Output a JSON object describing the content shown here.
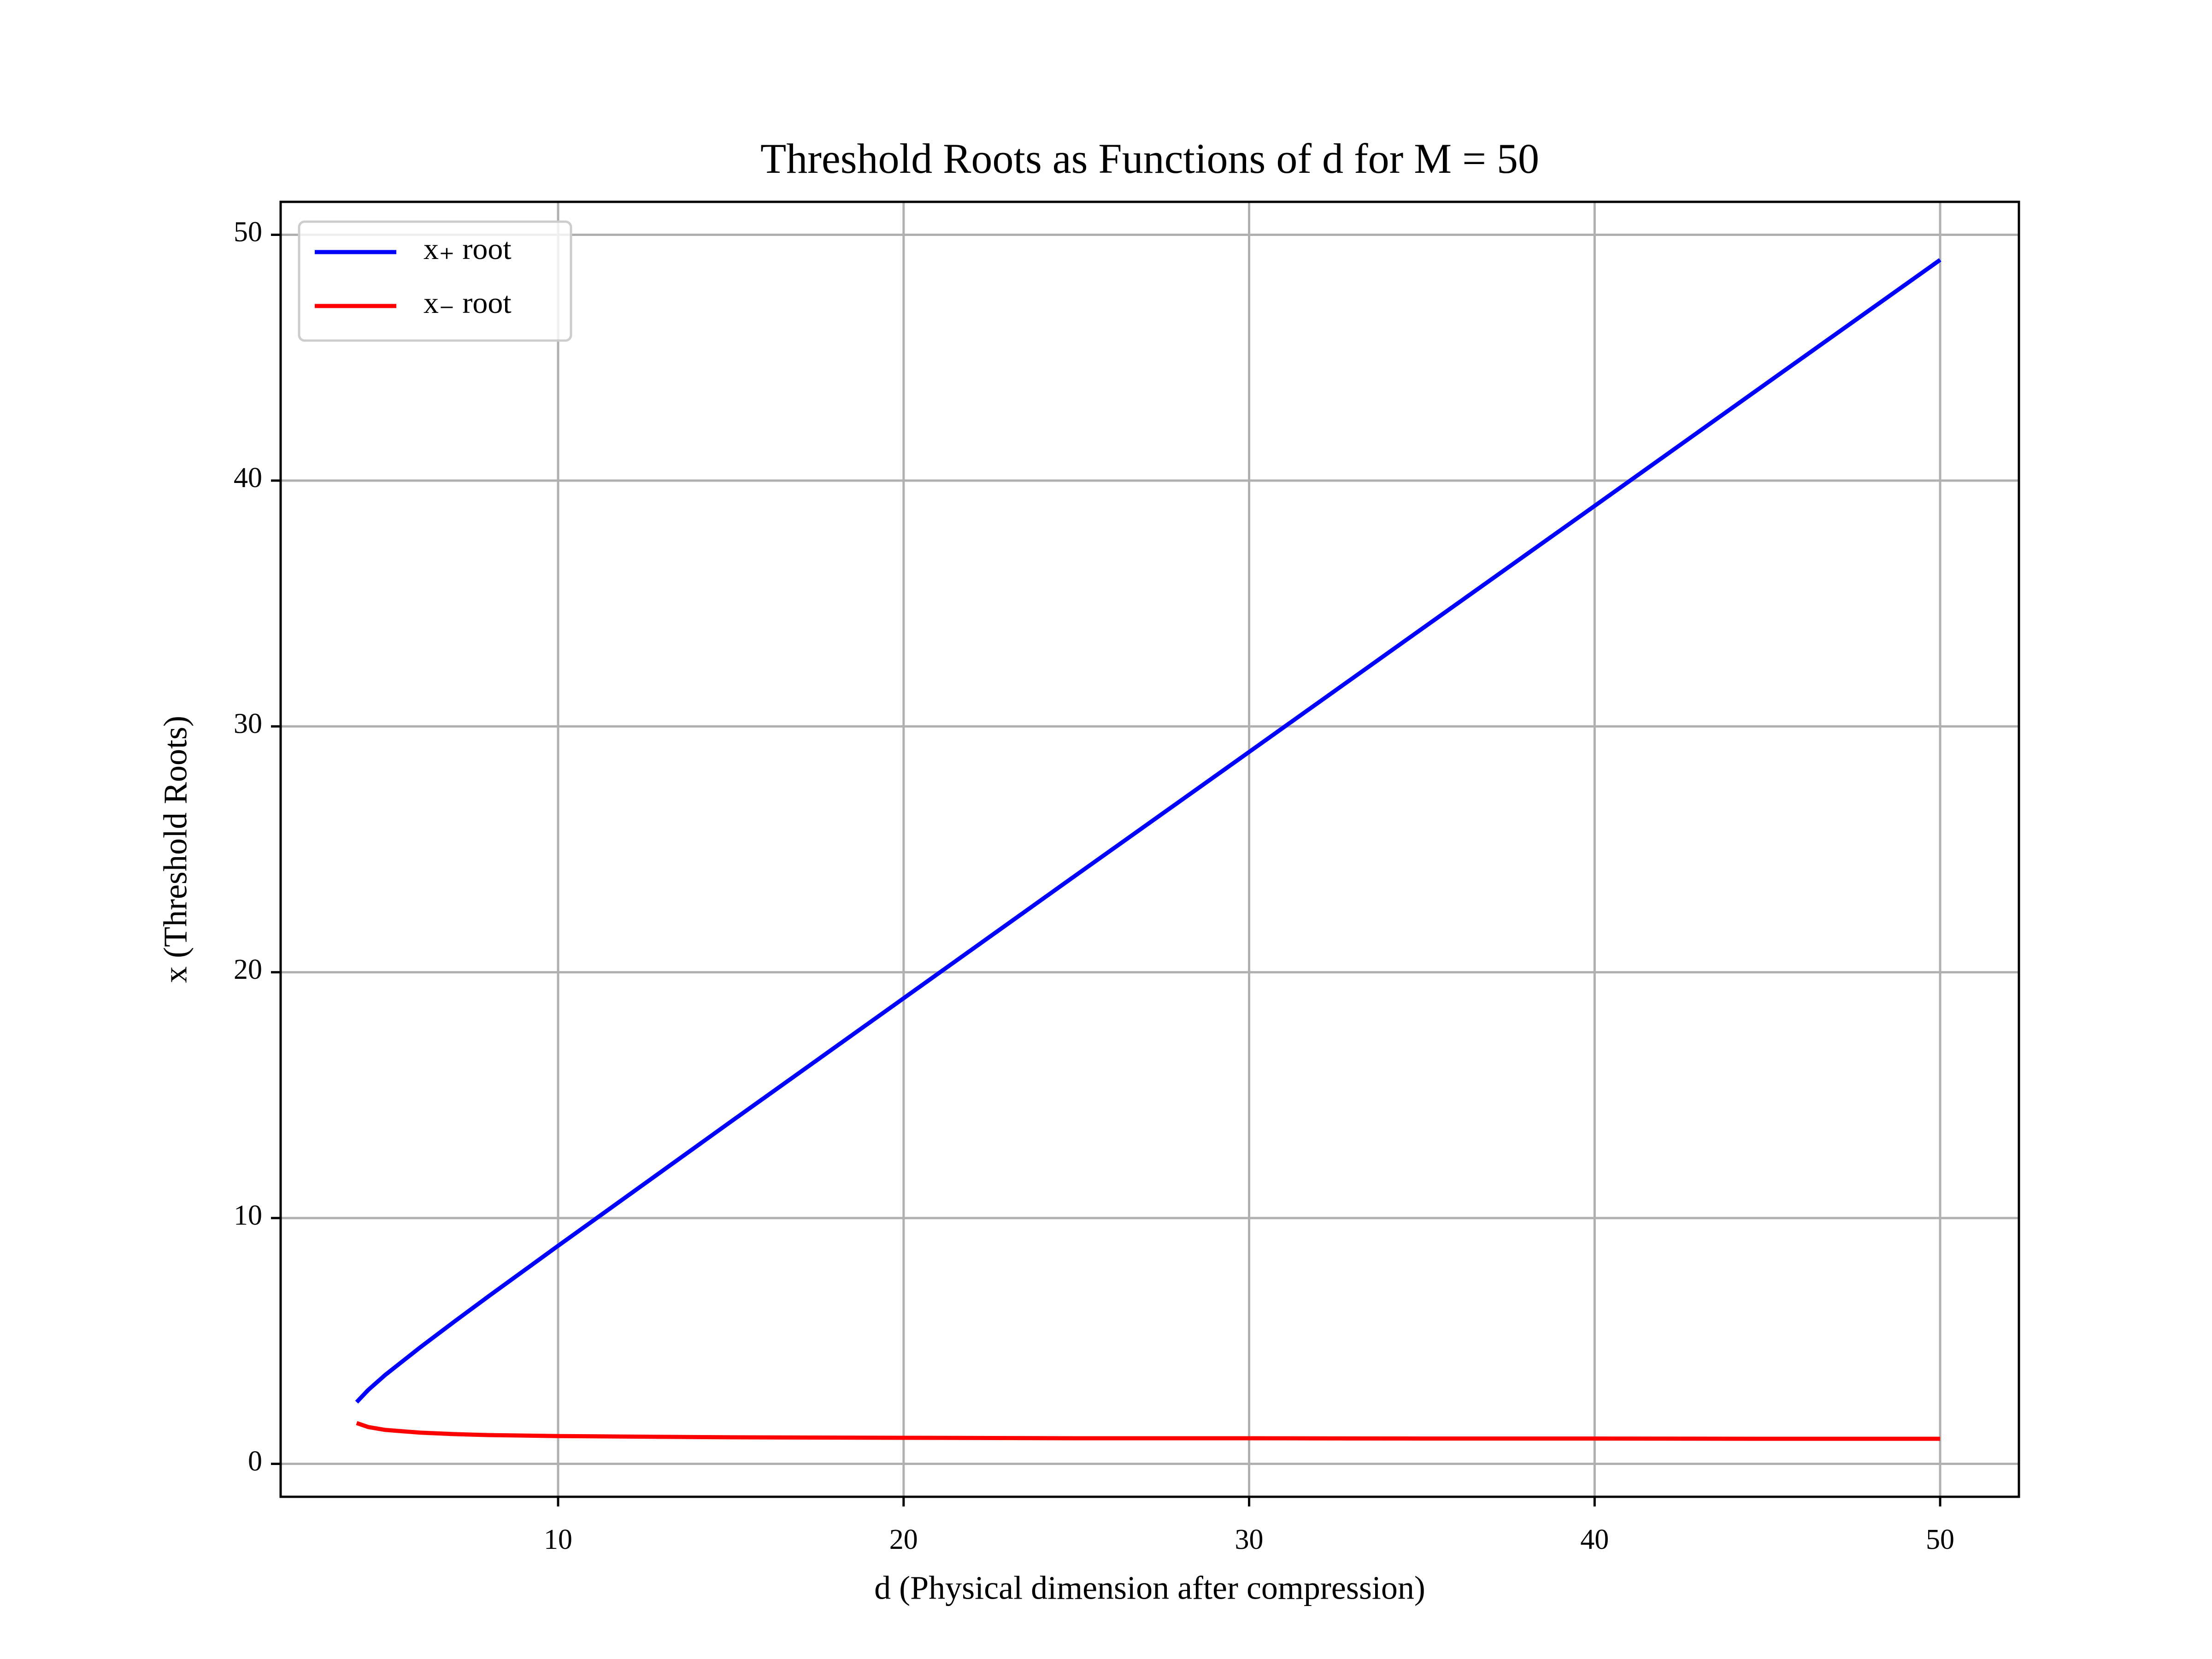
{
  "chart_data": {
    "type": "line",
    "title": "Threshold Roots as Functions of d for M = 50",
    "xlabel": "d (Physical dimension after compression)",
    "ylabel": "x (Threshold Roots)",
    "x": [
      4.17,
      4.5,
      5,
      6,
      7,
      8,
      10,
      15,
      20,
      25,
      30,
      35,
      40,
      45,
      50
    ],
    "series": [
      {
        "name": "x₊ root",
        "color": "#0000ff",
        "values": [
          2.51,
          3.0,
          3.62,
          4.73,
          5.79,
          6.83,
          8.87,
          13.92,
          18.94,
          23.96,
          28.96,
          33.97,
          38.97,
          43.98,
          48.98
        ]
      },
      {
        "name": "x₋ root",
        "color": "#ff0000",
        "values": [
          1.66,
          1.5,
          1.38,
          1.27,
          1.21,
          1.17,
          1.13,
          1.08,
          1.06,
          1.04,
          1.04,
          1.03,
          1.03,
          1.02,
          1.02
        ]
      }
    ],
    "xlim": [
      1.97,
      52.28
    ],
    "ylim": [
      -1.34,
      51.34
    ],
    "xticks": [
      10,
      20,
      30,
      40,
      50
    ],
    "yticks": [
      0,
      10,
      20,
      30,
      40,
      50
    ],
    "grid": true,
    "legend": "upper left"
  }
}
